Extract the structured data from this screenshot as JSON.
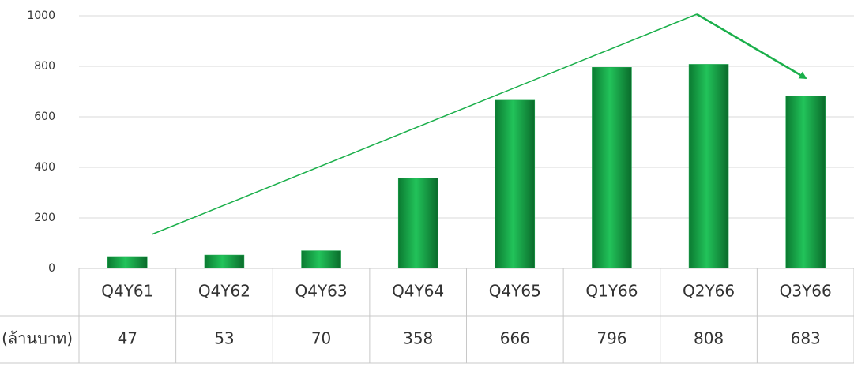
{
  "chart_data": {
    "type": "bar",
    "categories": [
      "Q4Y61",
      "Q4Y62",
      "Q4Y63",
      "Q4Y64",
      "Q4Y65",
      "Q1Y66",
      "Q2Y66",
      "Q3Y66"
    ],
    "series": [
      {
        "name": "(ล้านบาท)",
        "color": "#17a84a",
        "values": [
          47,
          53,
          70,
          358,
          666,
          796,
          808,
          683
        ]
      }
    ],
    "ylim": [
      0,
      1000
    ],
    "yticks": [
      0,
      200,
      400,
      600,
      800,
      1000
    ],
    "grid": true
  }
}
